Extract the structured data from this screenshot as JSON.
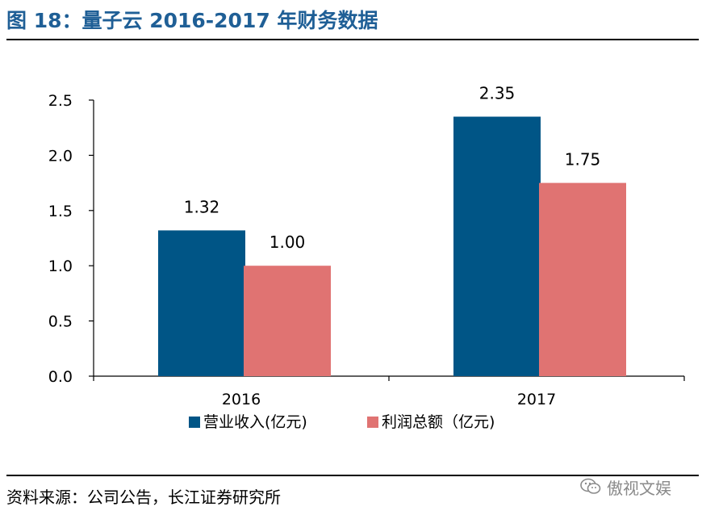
{
  "header": {
    "title": "图 18：量子云 2016-2017 年财务数据"
  },
  "footer": {
    "source": "资料来源：公司公告，长江证券研究所",
    "watermark": "傲视文娱"
  },
  "colors": {
    "title": "#1f5f96",
    "series_revenue": "#005586",
    "series_profit": "#e07372"
  },
  "chart_data": {
    "type": "bar",
    "categories": [
      "2016",
      "2017"
    ],
    "series": [
      {
        "name": "营业收入(亿元)",
        "values": [
          1.32,
          2.35
        ],
        "labels": [
          "1.32",
          "2.35"
        ]
      },
      {
        "name": "利润总额（亿元)",
        "values": [
          1.0,
          1.75
        ],
        "labels": [
          "1.00",
          "1.75"
        ]
      }
    ],
    "yticks": [
      "0.0",
      "0.5",
      "1.0",
      "1.5",
      "2.0",
      "2.5"
    ],
    "ylim": [
      0,
      2.5
    ],
    "grid": false,
    "legend": "bottom"
  }
}
